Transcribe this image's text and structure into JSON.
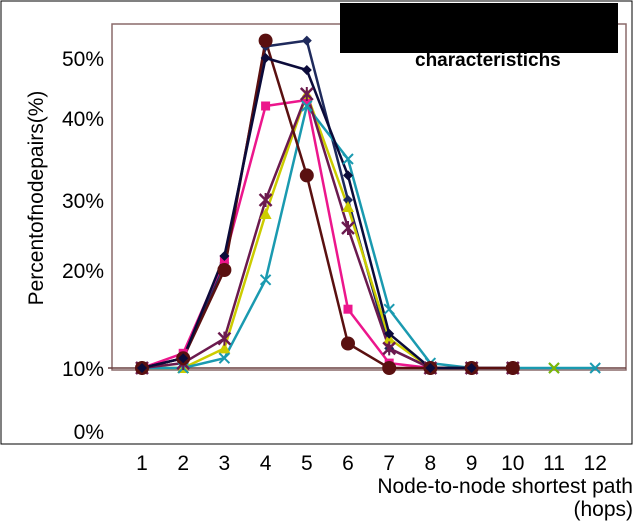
{
  "chart_data": {
    "type": "line",
    "title": "characteristichs",
    "xlabel_lines": [
      "Node-to-node shortest path",
      "(hops)"
    ],
    "ylabel": "Percentofnodepairs(%)",
    "categories": [
      "1",
      "2",
      "3",
      "4",
      "5",
      "6",
      "7",
      "8",
      "9",
      "10",
      "11",
      "12"
    ],
    "y_tick_labels": [
      "0%",
      "10%",
      "20%",
      "30%",
      "40%",
      "50%"
    ],
    "y_tick_values": [
      0,
      10,
      20,
      30,
      40,
      50
    ],
    "note": "",
    "series": [
      {
        "color": "#1f2a5c",
        "marker": "diamond",
        "values": [
          10,
          11,
          21,
          52,
          53,
          30,
          12,
          10,
          10,
          null,
          null,
          null
        ]
      },
      {
        "color": "#ec168c",
        "marker": "square",
        "values": [
          10,
          11.5,
          21.5,
          42,
          43,
          16,
          10.5,
          10,
          10,
          null,
          null,
          null
        ]
      },
      {
        "color": "#cccc00",
        "marker": "triangle",
        "values": [
          10,
          10,
          12,
          28,
          44,
          29,
          13,
          10,
          10,
          null,
          null,
          null
        ]
      },
      {
        "color": "#1a9ab0",
        "marker": "x",
        "values": [
          10,
          10,
          11,
          19,
          42,
          35,
          16,
          10.5,
          10,
          10,
          10,
          10
        ]
      },
      {
        "color": "#6b1a4e",
        "marker": "star",
        "values": [
          10,
          10.5,
          13,
          30,
          44,
          26,
          12,
          10,
          10,
          10,
          null,
          null
        ]
      },
      {
        "color": "#5a1010",
        "marker": "circle",
        "values": [
          10,
          11,
          20,
          53,
          33,
          12.5,
          10,
          10,
          10,
          10,
          null,
          null
        ]
      },
      {
        "color": "#0b0b3a",
        "marker": "diamond-dark",
        "values": [
          10,
          11,
          22,
          50,
          48,
          33,
          13.5,
          10,
          10,
          null,
          null,
          null
        ]
      },
      {
        "color": "#7fb800",
        "marker": "x",
        "values": [
          null,
          null,
          null,
          null,
          null,
          null,
          null,
          null,
          null,
          null,
          10,
          null
        ]
      }
    ]
  }
}
